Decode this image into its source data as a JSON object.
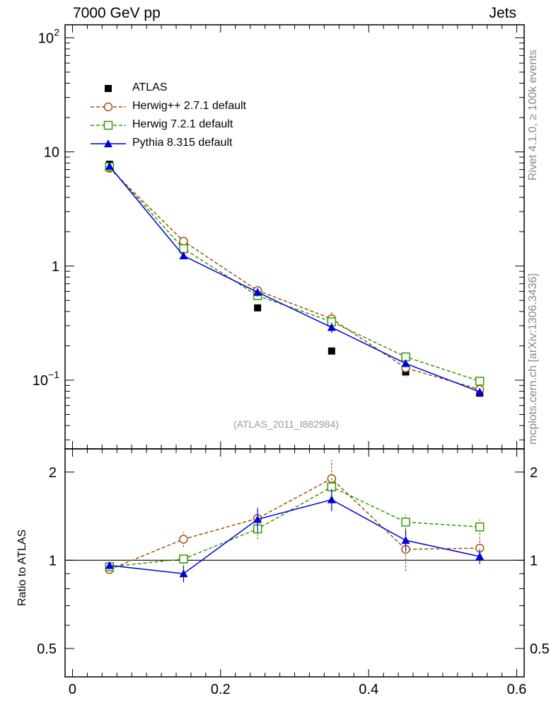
{
  "header": {
    "left": "7000 GeV pp",
    "right": "Jets"
  },
  "side_labels": {
    "rivet": "Rivet 4.1.0, ≥ 100k events",
    "mcplots": "mcplots.cern.ch [arXiv:1306.3436]"
  },
  "reference_label": "(ATLAS_2011_I882984)",
  "ratio_ylabel": "Ratio to ATLAS",
  "colors": {
    "atlas": "#000000",
    "herwigpp": "#a0520a",
    "herwig7": "#339900",
    "pythia": "#0000dd"
  },
  "legend": [
    {
      "name": "ATLAS",
      "key": "atlas",
      "marker": "filled-square",
      "line": "none"
    },
    {
      "name": "Herwig++ 2.7.1 default",
      "key": "herwigpp",
      "marker": "open-circle",
      "line": "dashed"
    },
    {
      "name": "Herwig 7.2.1 default",
      "key": "herwig7",
      "marker": "open-square",
      "line": "dashed"
    },
    {
      "name": "Pythia 8.315 default",
      "key": "pythia",
      "marker": "filled-triangle",
      "line": "solid"
    }
  ],
  "chart_data": {
    "type": "line",
    "x": [
      0.05,
      0.15,
      0.25,
      0.35,
      0.45,
      0.55
    ],
    "xlim": [
      -0.01,
      0.61
    ],
    "xticks": [
      0,
      0.2,
      0.4,
      0.6
    ],
    "xtick_labels": [
      "0",
      "0.2",
      "0.4",
      "0.6"
    ],
    "main": {
      "yscale": "log",
      "ylim": [
        0.025,
        130
      ],
      "yticks": [
        0.1,
        1,
        10,
        100
      ],
      "ytick_labels": [
        [
          "10",
          "−1"
        ],
        [
          "1",
          ""
        ],
        [
          "10",
          ""
        ],
        [
          "10",
          "2"
        ]
      ],
      "series": [
        {
          "name": "ATLAS",
          "key": "atlas",
          "values": [
            7.8,
            1.4,
            0.43,
            0.18,
            0.118,
            0.077
          ]
        },
        {
          "name": "Herwig++ 2.7.1 default",
          "key": "herwigpp",
          "values": [
            7.2,
            1.65,
            0.61,
            0.345,
            0.128,
            0.083
          ],
          "errors": [
            0.15,
            0.05,
            0.04,
            0.06,
            0.02,
            0.01
          ]
        },
        {
          "name": "Herwig 7.2.1 default",
          "key": "herwig7",
          "values": [
            7.4,
            1.42,
            0.55,
            0.325,
            0.16,
            0.098
          ],
          "errors": [
            0.15,
            0.04,
            0.03,
            0.03,
            0.01,
            0.006
          ]
        },
        {
          "name": "Pythia 8.315 default",
          "key": "pythia",
          "values": [
            7.5,
            1.23,
            0.59,
            0.29,
            0.14,
            0.079
          ],
          "errors": [
            0.15,
            0.04,
            0.05,
            0.03,
            0.01,
            0.006
          ]
        }
      ]
    },
    "ratio": {
      "yscale": "log",
      "ylim": [
        0.4,
        2.4
      ],
      "yticks": [
        0.5,
        1,
        2
      ],
      "ytick_labels": [
        "0.5",
        "1",
        "2"
      ],
      "series": [
        {
          "name": "Herwig++ 2.7.1 default",
          "key": "herwigpp",
          "values": [
            0.93,
            1.18,
            1.39,
            1.9,
            1.09,
            1.1
          ],
          "errors": [
            0.02,
            0.07,
            0.09,
            0.3,
            0.17,
            0.1
          ]
        },
        {
          "name": "Herwig 7.2.1 default",
          "key": "herwig7",
          "values": [
            0.95,
            1.01,
            1.28,
            1.78,
            1.35,
            1.3
          ],
          "errors": [
            0.02,
            0.04,
            0.1,
            0.15,
            0.08,
            0.08
          ]
        },
        {
          "name": "Pythia 8.315 default",
          "key": "pythia",
          "values": [
            0.96,
            0.9,
            1.38,
            1.61,
            1.17,
            1.03
          ],
          "errors": [
            0.02,
            0.06,
            0.13,
            0.14,
            0.1,
            0.06
          ]
        }
      ]
    }
  }
}
